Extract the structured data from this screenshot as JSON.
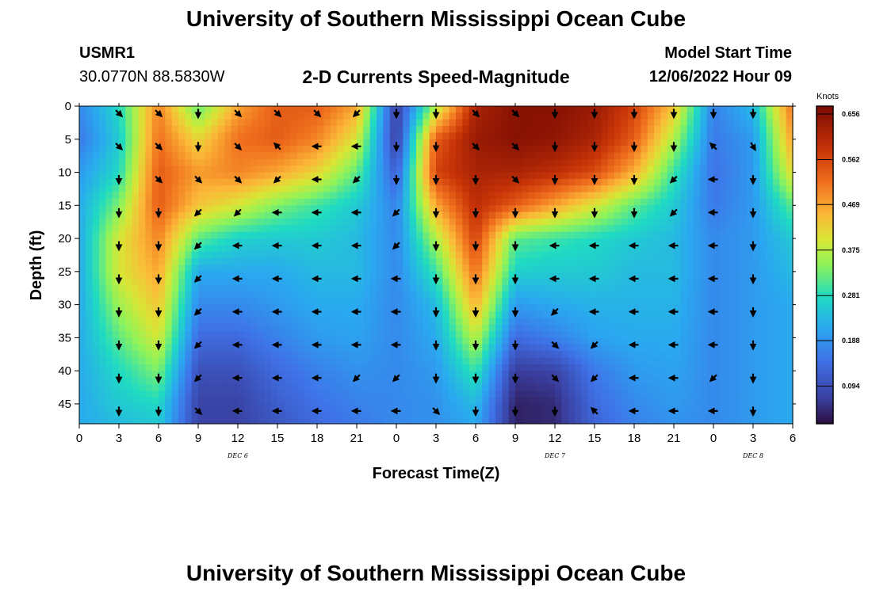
{
  "header": {
    "title": "University of Southern Mississippi Ocean Cube",
    "station": "USMR1",
    "coordinates": "30.0770N  88.5830W",
    "subtitle": "2-D Currents Speed-Magnitude",
    "model_start_label": "Model Start Time",
    "model_start_value": "12/06/2022 Hour 09"
  },
  "footer": {
    "title": "University of Southern Mississippi Ocean Cube"
  },
  "chart_data": {
    "type": "heatmap",
    "title": "2-D Currents Speed-Magnitude",
    "xlabel": "Forecast Time(Z)",
    "ylabel": "Depth (ft)",
    "x_ticks": [
      "0",
      "3",
      "6",
      "9",
      "12",
      "15",
      "18",
      "21",
      "0",
      "3",
      "6",
      "9",
      "12",
      "15",
      "18",
      "21",
      "0",
      "3",
      "6"
    ],
    "x_hours": [
      0,
      3,
      6,
      9,
      12,
      15,
      18,
      21,
      24,
      27,
      30,
      33,
      36,
      39,
      42,
      45,
      48,
      51,
      54
    ],
    "date_labels": [
      {
        "label": "DEC 6",
        "hour": 12
      },
      {
        "label": "DEC 7",
        "hour": 36
      },
      {
        "label": "DEC 8",
        "hour": 51
      }
    ],
    "y_ticks": [
      0,
      5,
      10,
      15,
      20,
      25,
      30,
      35,
      40,
      45
    ],
    "ylim": [
      0,
      48
    ],
    "xlim": [
      0,
      54
    ],
    "colorbar": {
      "unit": "Knots",
      "range": [
        0.0,
        0.656
      ],
      "labels": [
        "0.656",
        "0.562",
        "0.469",
        "0.375",
        "0.281",
        "0.188",
        "0.094"
      ],
      "values": [
        0.656,
        0.562,
        0.469,
        0.375,
        0.281,
        0.188,
        0.094
      ]
    },
    "arrow_hours": [
      3,
      6,
      9,
      12,
      15,
      18,
      21,
      24,
      27,
      30,
      33,
      36,
      39,
      42,
      45,
      48,
      51
    ],
    "arrow_depths": [
      0,
      5,
      10,
      15,
      20,
      25,
      30,
      35,
      40,
      45
    ],
    "speed_grid": {
      "hours": [
        0,
        3,
        6,
        9,
        12,
        15,
        18,
        21,
        24,
        27,
        30,
        33,
        36,
        39,
        42,
        45,
        48,
        51,
        54
      ],
      "depths": [
        0,
        5,
        10,
        15,
        20,
        25,
        30,
        35,
        40,
        45,
        48
      ],
      "values": [
        [
          0.16,
          0.26,
          0.48,
          0.3,
          0.45,
          0.52,
          0.52,
          0.45,
          0.05,
          0.35,
          0.6,
          0.64,
          0.64,
          0.62,
          0.55,
          0.42,
          0.15,
          0.22,
          0.5
        ],
        [
          0.14,
          0.24,
          0.5,
          0.4,
          0.5,
          0.52,
          0.48,
          0.38,
          0.05,
          0.52,
          0.62,
          0.64,
          0.63,
          0.6,
          0.52,
          0.35,
          0.14,
          0.18,
          0.46
        ],
        [
          0.18,
          0.26,
          0.52,
          0.46,
          0.48,
          0.45,
          0.4,
          0.3,
          0.1,
          0.55,
          0.6,
          0.6,
          0.58,
          0.54,
          0.44,
          0.28,
          0.13,
          0.18,
          0.4
        ],
        [
          0.2,
          0.32,
          0.52,
          0.42,
          0.38,
          0.32,
          0.28,
          0.24,
          0.15,
          0.45,
          0.58,
          0.52,
          0.45,
          0.38,
          0.3,
          0.24,
          0.14,
          0.18,
          0.3
        ],
        [
          0.2,
          0.38,
          0.48,
          0.3,
          0.25,
          0.24,
          0.24,
          0.22,
          0.16,
          0.35,
          0.55,
          0.3,
          0.28,
          0.26,
          0.24,
          0.22,
          0.16,
          0.18,
          0.24
        ],
        [
          0.2,
          0.38,
          0.45,
          0.2,
          0.2,
          0.2,
          0.22,
          0.22,
          0.16,
          0.28,
          0.5,
          0.25,
          0.24,
          0.24,
          0.22,
          0.22,
          0.16,
          0.18,
          0.22
        ],
        [
          0.2,
          0.34,
          0.42,
          0.16,
          0.16,
          0.18,
          0.2,
          0.2,
          0.16,
          0.22,
          0.44,
          0.18,
          0.2,
          0.21,
          0.21,
          0.21,
          0.16,
          0.18,
          0.2
        ],
        [
          0.2,
          0.3,
          0.38,
          0.12,
          0.12,
          0.15,
          0.18,
          0.19,
          0.16,
          0.2,
          0.36,
          0.12,
          0.15,
          0.19,
          0.2,
          0.2,
          0.16,
          0.18,
          0.2
        ],
        [
          0.2,
          0.26,
          0.32,
          0.08,
          0.08,
          0.12,
          0.15,
          0.17,
          0.16,
          0.18,
          0.28,
          0.05,
          0.06,
          0.14,
          0.18,
          0.19,
          0.16,
          0.18,
          0.2
        ],
        [
          0.2,
          0.24,
          0.26,
          0.06,
          0.06,
          0.1,
          0.13,
          0.15,
          0.16,
          0.17,
          0.22,
          0.02,
          0.03,
          0.12,
          0.16,
          0.18,
          0.16,
          0.18,
          0.2
        ],
        [
          0.2,
          0.22,
          0.24,
          0.06,
          0.06,
          0.09,
          0.12,
          0.14,
          0.16,
          0.17,
          0.2,
          0.02,
          0.03,
          0.11,
          0.15,
          0.17,
          0.16,
          0.18,
          0.2
        ]
      ]
    },
    "arrow_directions_deg": [
      [
        135,
        135,
        180,
        135,
        135,
        135,
        225,
        180,
        180,
        135,
        135,
        180,
        180,
        180,
        180,
        180,
        180
      ],
      [
        135,
        135,
        180,
        135,
        315,
        270,
        270,
        180,
        180,
        135,
        135,
        180,
        180,
        180,
        180,
        315,
        150
      ],
      [
        180,
        135,
        135,
        135,
        225,
        270,
        225,
        180,
        180,
        180,
        135,
        180,
        180,
        180,
        225,
        270,
        180
      ],
      [
        180,
        180,
        225,
        225,
        270,
        270,
        270,
        225,
        180,
        180,
        180,
        180,
        180,
        180,
        225,
        270,
        180
      ],
      [
        180,
        180,
        225,
        270,
        270,
        270,
        270,
        225,
        180,
        180,
        180,
        270,
        270,
        270,
        270,
        270,
        180
      ],
      [
        180,
        180,
        225,
        270,
        270,
        270,
        270,
        270,
        180,
        180,
        180,
        270,
        270,
        270,
        270,
        270,
        180
      ],
      [
        180,
        180,
        225,
        270,
        270,
        270,
        270,
        270,
        180,
        180,
        180,
        225,
        270,
        270,
        270,
        270,
        180
      ],
      [
        180,
        180,
        225,
        270,
        270,
        270,
        270,
        270,
        180,
        180,
        180,
        135,
        225,
        270,
        270,
        270,
        180
      ],
      [
        180,
        180,
        225,
        270,
        270,
        270,
        225,
        225,
        180,
        180,
        180,
        135,
        225,
        270,
        270,
        225,
        180
      ],
      [
        180,
        180,
        135,
        270,
        270,
        270,
        270,
        270,
        135,
        180,
        180,
        180,
        315,
        270,
        270,
        270,
        180
      ]
    ]
  }
}
